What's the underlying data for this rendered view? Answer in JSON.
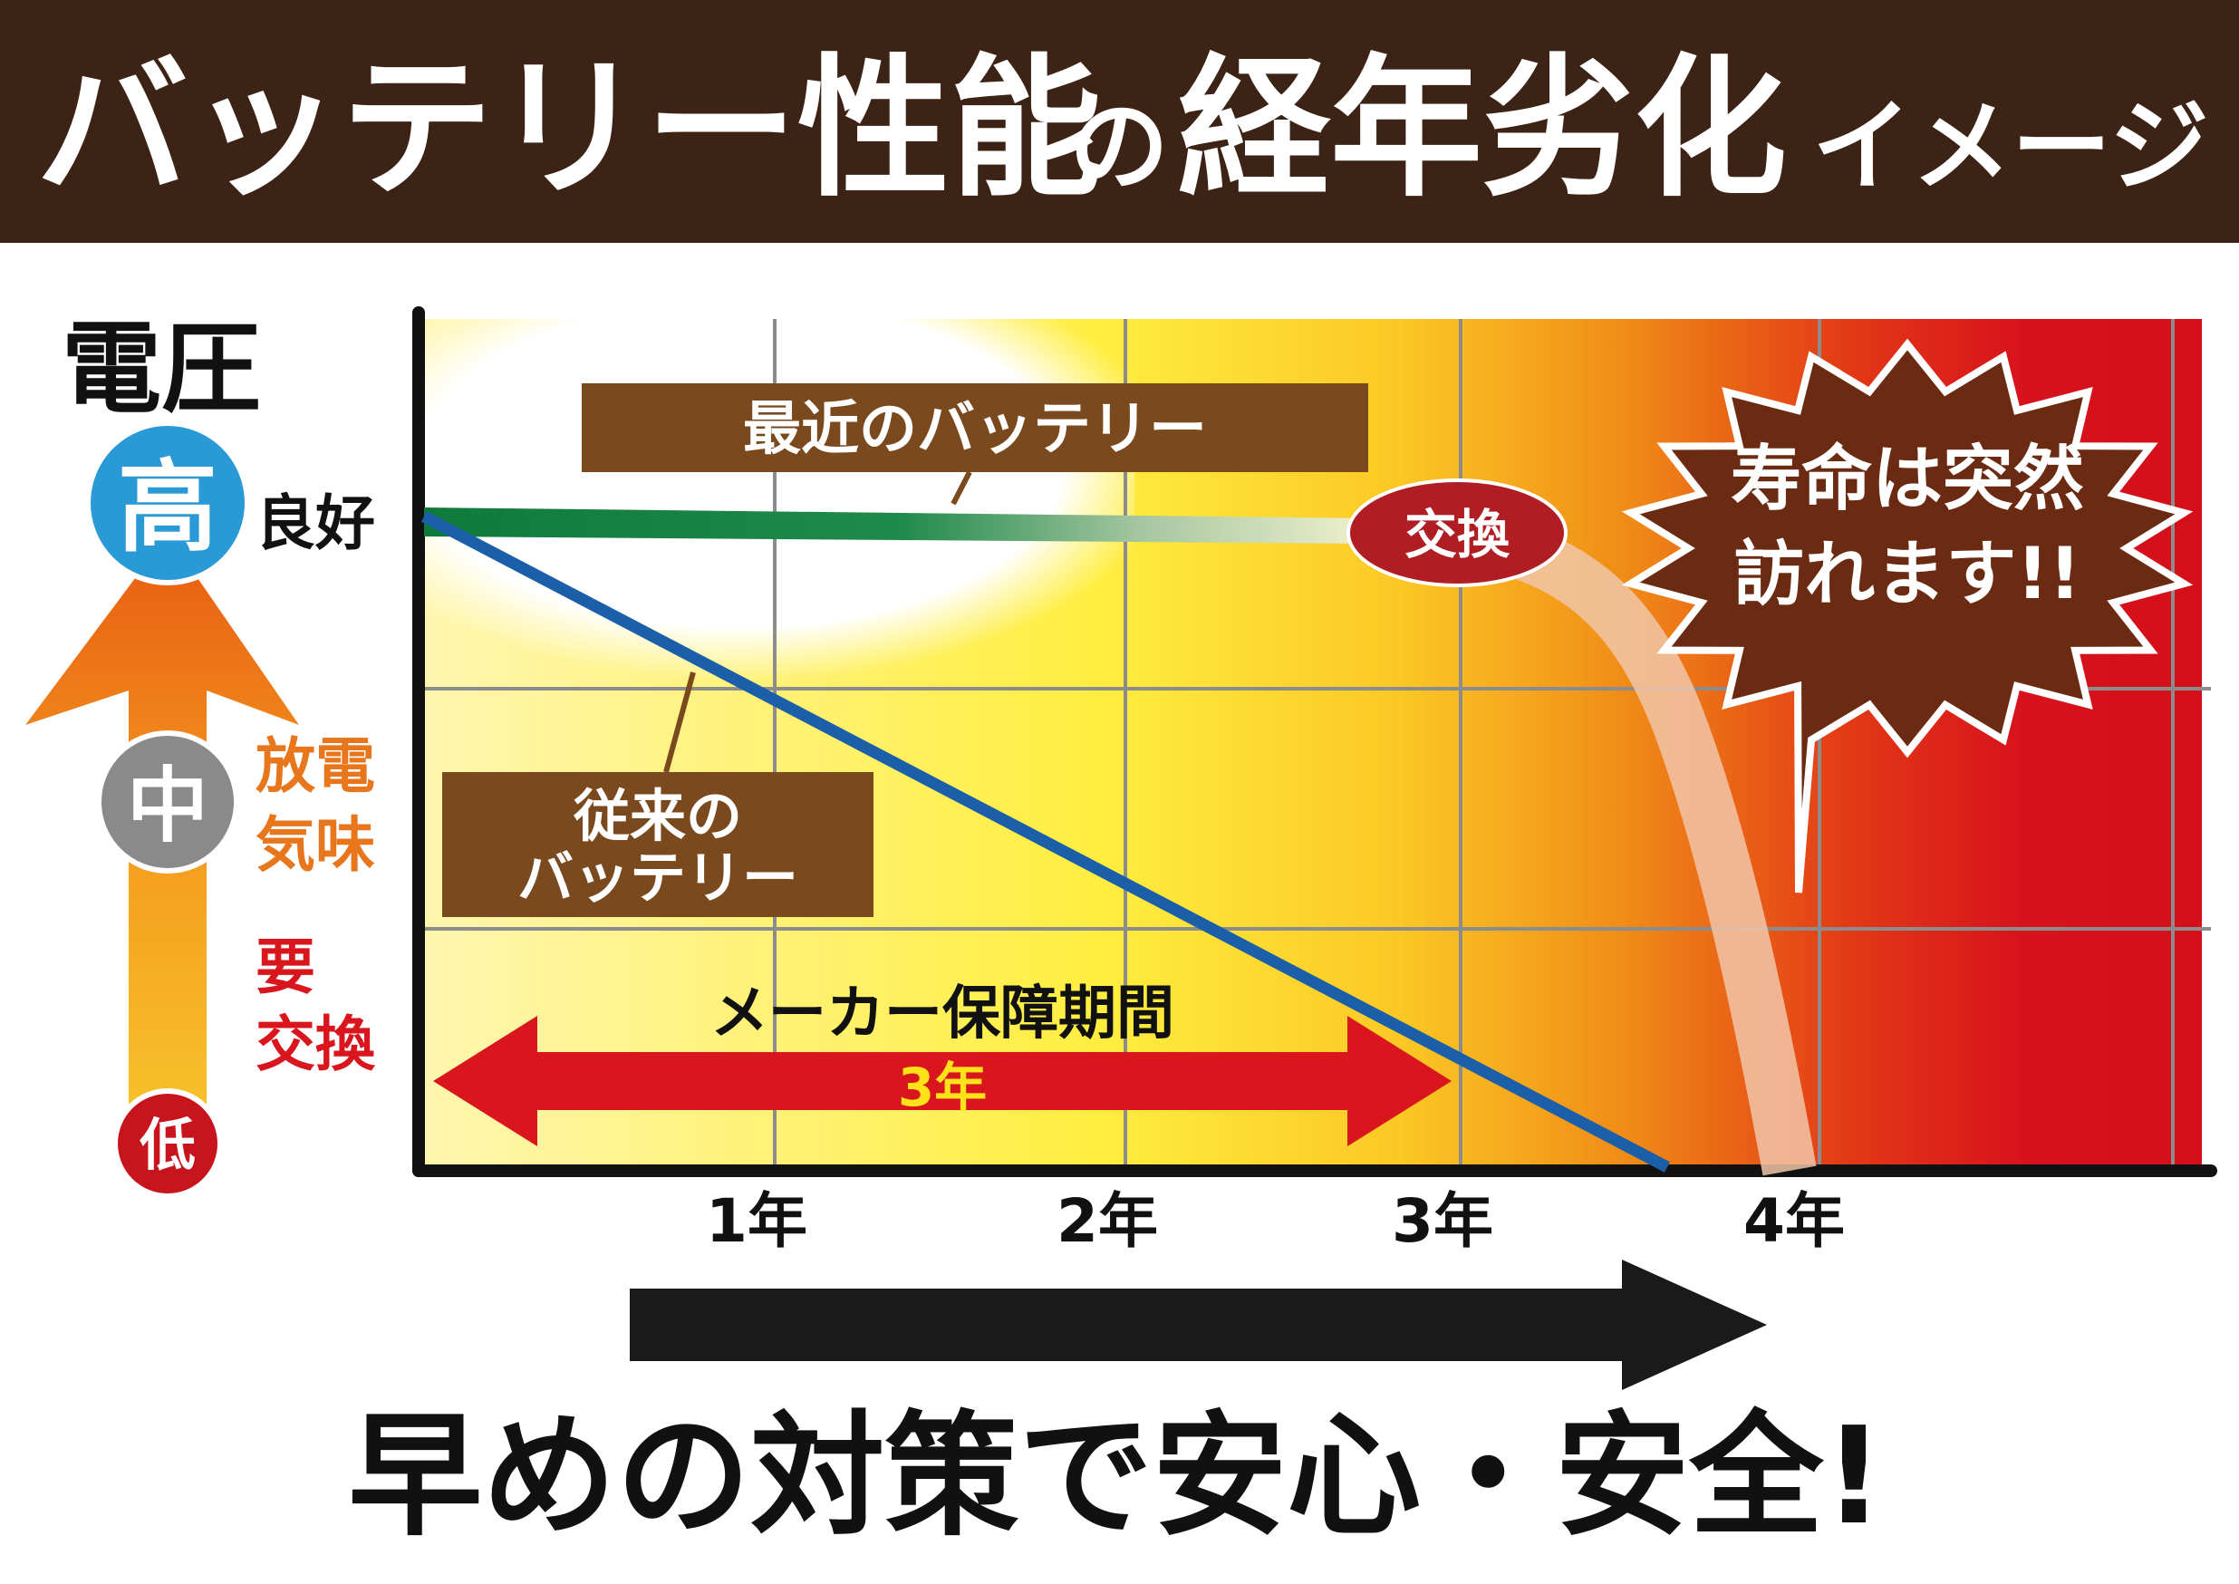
{
  "title": {
    "big": "バッテリー性能",
    "no": "の",
    "big2": "経年劣化",
    "small": "イメージ"
  },
  "y_axis": {
    "label": "電圧",
    "high": "高",
    "mid": "中",
    "low": "低",
    "good": "良好",
    "discharge_1": "放電",
    "discharge_2": "気味",
    "replace_1": "要",
    "replace_2": "交換"
  },
  "labels": {
    "recent": "最近のバッテリー",
    "conventional_1": "従来の",
    "conventional_2": "バッテリー",
    "exchange": "交換",
    "burst_1": "寿命は突然",
    "burst_2": "訪れます!!",
    "warranty": "メーカー保障期間",
    "warranty_years": "3年"
  },
  "footer": "早めの対策で安心・安全!",
  "colors": {
    "title_bar": "#3c2315",
    "recent_line": "#0f7a3c",
    "conventional_line": "#1a5fa8",
    "label_box": "#7a4a1e",
    "exchange_oval": "#b01e23",
    "burst": "#6b2a12",
    "warranty_arrow": "#d9151d",
    "warranty_years_text": "#ffe21a",
    "high_circle": "#2a9ad6",
    "mid_circle": "#8a8a8a",
    "low_circle": "#c8151d",
    "discharge_text": "#e8761c",
    "replace_text": "#d9151d"
  },
  "chart_data": {
    "type": "line",
    "x": [
      0,
      1,
      2,
      3,
      4,
      5
    ],
    "x_tick_labels": [
      "1年",
      "2年",
      "3年",
      "4年"
    ],
    "x_ticks": [
      1,
      2,
      3,
      4
    ],
    "xlim": [
      0,
      5.2
    ],
    "ylim": [
      0,
      3.5
    ],
    "y_categories": [
      "低",
      "中",
      "高"
    ],
    "grid": true,
    "series": [
      {
        "name": "最近のバッテリー",
        "points": [
          [
            0,
            2.8
          ],
          [
            1,
            2.78
          ],
          [
            2,
            2.75
          ],
          [
            2.7,
            2.7
          ],
          [
            3.2,
            2.4
          ],
          [
            3.55,
            1.5
          ],
          [
            3.8,
            0.4
          ],
          [
            3.9,
            0
          ]
        ]
      },
      {
        "name": "従来のバッテリー",
        "points": [
          [
            0,
            2.7
          ],
          [
            3.57,
            0
          ]
        ]
      }
    ],
    "warranty_period": [
      0,
      3
    ]
  }
}
